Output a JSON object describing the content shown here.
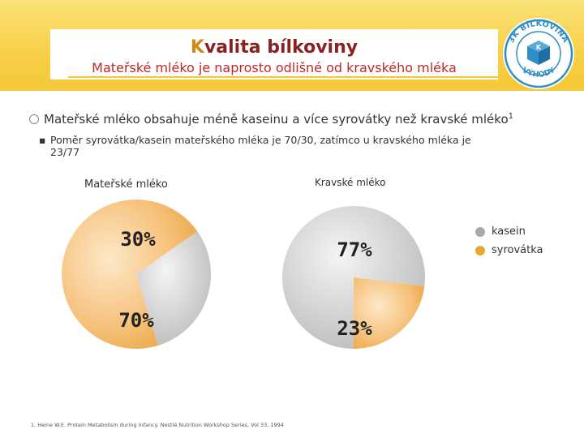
{
  "header": {
    "title_first": "K",
    "title_rest": "valita bílkoviny",
    "subtitle": "Mateřské mléko je naprosto odlišné od kravského mléka"
  },
  "badge": {
    "ring_text": "3K BÍLKOVINA",
    "bottom_text": "VÝHODY"
  },
  "bullets": {
    "main": "Mateřské mléko obsahuje méně kaseinu a více syrovátky než kravské mléko",
    "main_sup": "1",
    "sub_line1": "Poměr syrovátka/kasein mateřského mléka je 70/30, zatímco u kravského mléka je",
    "sub_line2": "23/77"
  },
  "chart_data": [
    {
      "type": "pie",
      "title": "Mateřské mléko",
      "slices": [
        {
          "name": "kasein",
          "value": 30,
          "label": "30%",
          "color": "#c8c8c8"
        },
        {
          "name": "syrovátka",
          "value": 70,
          "label": "70%",
          "color": "#f2b25a"
        }
      ]
    },
    {
      "type": "pie",
      "title": "Kravské mléko",
      "slices": [
        {
          "name": "kasein",
          "value": 77,
          "label": "77%",
          "color": "#c8c8c8"
        },
        {
          "name": "syrovátka",
          "value": 23,
          "label": "23%",
          "color": "#f2b25a"
        }
      ]
    }
  ],
  "legend": [
    {
      "label": "kasein",
      "color": "#a9a9a9"
    },
    {
      "label": "syrovátka",
      "color": "#e8a92a"
    }
  ],
  "footnote": "1. Heine W.E. Protein Metabolism during Infancy. Nestlé Nutrition Workshop Series, Vol 33, 1994"
}
